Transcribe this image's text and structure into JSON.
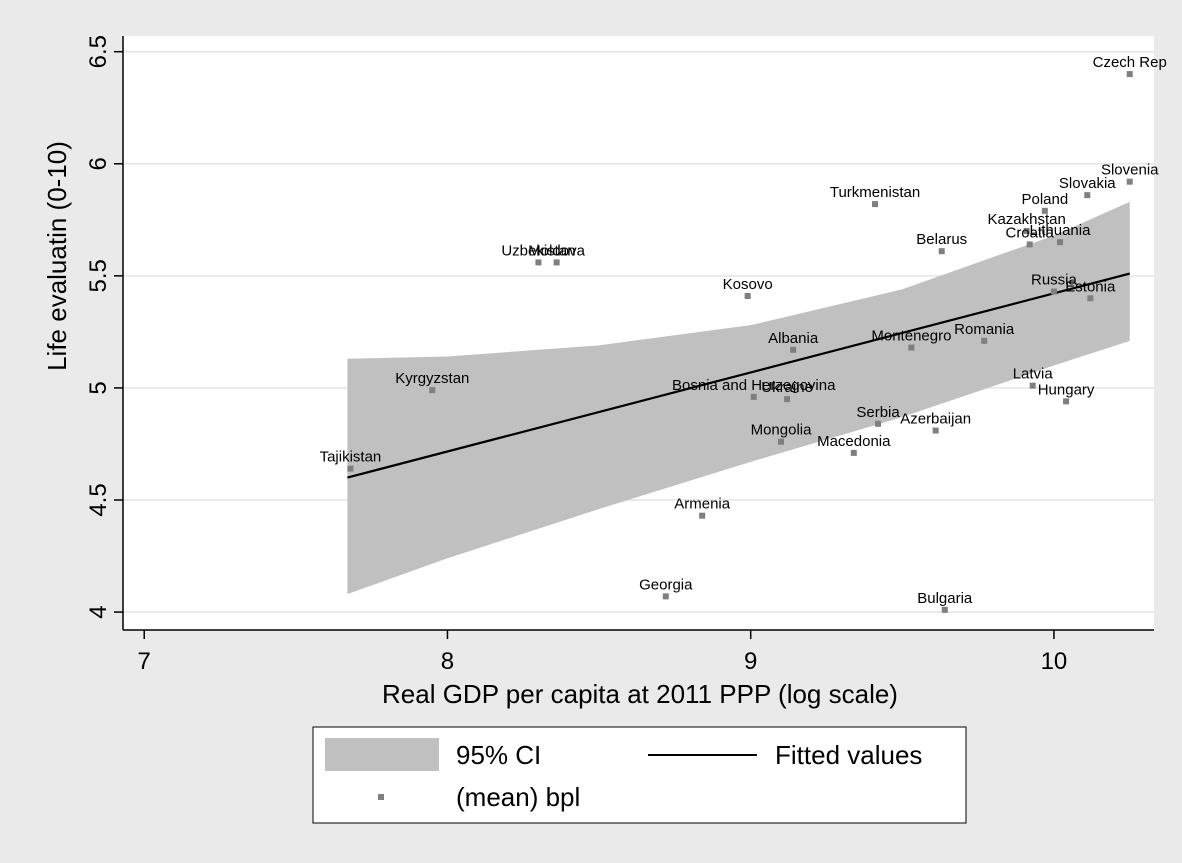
{
  "chart_data": {
    "type": "scatter",
    "xlabel": "Real GDP per capita at 2011 PPP (log scale)",
    "ylabel": "Life evaluatin (0-10)",
    "xlim": [
      6.93,
      10.33
    ],
    "ylim": [
      3.92,
      6.57
    ],
    "xticks": [
      7,
      8,
      9,
      10
    ],
    "yticks": [
      4,
      4.5,
      5,
      5.5,
      6,
      6.5
    ],
    "xtick_labels": [
      "7",
      "8",
      "9",
      "10"
    ],
    "ytick_labels": [
      "4",
      "4.5",
      "5",
      "5.5",
      "6",
      "6.5"
    ],
    "grid": true,
    "legend_position": "bottom",
    "colors": {
      "background": "#eaeaea",
      "plot": "#ffffff",
      "ci_band": "#c0c0c0",
      "fit_line": "#000000",
      "marker": "#7f7f7f",
      "grid": "#eaeaea"
    },
    "points": [
      {
        "label": "Czech Rep",
        "x": 10.25,
        "y": 6.4
      },
      {
        "label": "Slovenia",
        "x": 10.25,
        "y": 5.92
      },
      {
        "label": "Slovakia",
        "x": 10.11,
        "y": 5.86
      },
      {
        "label": "Poland",
        "x": 9.97,
        "y": 5.79
      },
      {
        "label": "Turkmenistan",
        "x": 9.41,
        "y": 5.82
      },
      {
        "label": "Kazakhstan",
        "x": 9.91,
        "y": 5.7
      },
      {
        "label": "Lithuania",
        "x": 10.02,
        "y": 5.65
      },
      {
        "label": "Croatia",
        "x": 9.92,
        "y": 5.64
      },
      {
        "label": "Belarus",
        "x": 9.63,
        "y": 5.61
      },
      {
        "label": "Uzbekistan",
        "x": 8.3,
        "y": 5.56
      },
      {
        "label": "Moldova",
        "x": 8.36,
        "y": 5.56
      },
      {
        "label": "Kosovo",
        "x": 8.99,
        "y": 5.41
      },
      {
        "label": "Russia",
        "x": 10.0,
        "y": 5.43
      },
      {
        "label": "Estonia",
        "x": 10.12,
        "y": 5.4
      },
      {
        "label": "Romania",
        "x": 9.77,
        "y": 5.21
      },
      {
        "label": "Montenegro",
        "x": 9.53,
        "y": 5.18
      },
      {
        "label": "Albania",
        "x": 9.14,
        "y": 5.17
      },
      {
        "label": "Kyrgyzstan",
        "x": 7.95,
        "y": 4.99
      },
      {
        "label": "Latvia",
        "x": 9.93,
        "y": 5.01
      },
      {
        "label": "Hungary",
        "x": 10.04,
        "y": 4.94
      },
      {
        "label": "Bosnia and Herzegovina",
        "x": 9.01,
        "y": 4.96
      },
      {
        "label": "Ukraine",
        "x": 9.12,
        "y": 4.95
      },
      {
        "label": "Serbia",
        "x": 9.42,
        "y": 4.84
      },
      {
        "label": "Azerbaijan",
        "x": 9.61,
        "y": 4.81
      },
      {
        "label": "Mongolia",
        "x": 9.1,
        "y": 4.76
      },
      {
        "label": "Macedonia",
        "x": 9.34,
        "y": 4.71
      },
      {
        "label": "Tajikistan",
        "x": 7.68,
        "y": 4.64
      },
      {
        "label": "Armenia",
        "x": 8.84,
        "y": 4.43
      },
      {
        "label": "Georgia",
        "x": 8.72,
        "y": 4.07
      },
      {
        "label": "Bulgaria",
        "x": 9.64,
        "y": 4.01
      }
    ],
    "fitted_line": {
      "x": [
        7.67,
        10.25
      ],
      "y": [
        4.6,
        5.51
      ]
    },
    "ci_band": [
      {
        "x": 7.67,
        "lo": 4.08,
        "hi": 5.13
      },
      {
        "x": 8.0,
        "lo": 4.24,
        "hi": 5.14
      },
      {
        "x": 8.5,
        "lo": 4.46,
        "hi": 5.19
      },
      {
        "x": 9.0,
        "lo": 4.67,
        "hi": 5.28
      },
      {
        "x": 9.5,
        "lo": 4.87,
        "hi": 5.44
      },
      {
        "x": 10.0,
        "lo": 5.1,
        "hi": 5.68
      },
      {
        "x": 10.25,
        "lo": 5.21,
        "hi": 5.83
      }
    ],
    "legend": {
      "items": [
        {
          "key": "ci",
          "label": "95% CI"
        },
        {
          "key": "fit",
          "label": "Fitted values"
        },
        {
          "key": "points",
          "label": "(mean) bpl"
        }
      ]
    }
  }
}
